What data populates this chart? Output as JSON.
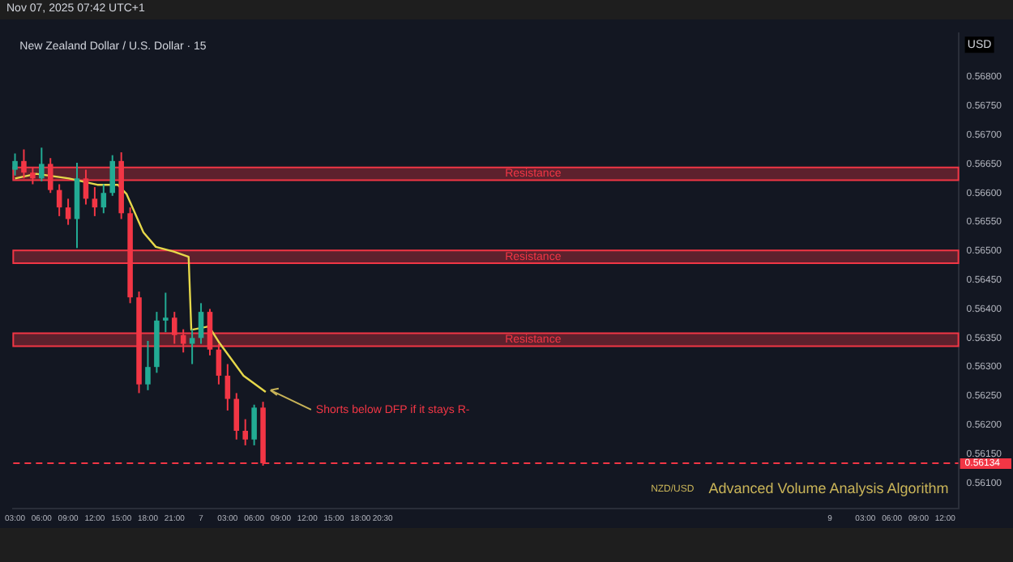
{
  "chart_data": {
    "type": "candlestick",
    "title": "New Zealand Dollar / U.S. Dollar · 15",
    "ylabel": "USD",
    "annotations": [
      "Nov 07, 2025 07:42 UTC+1",
      "NZD/USD",
      "Advanced Volume Analysis Algorithm",
      {
        "text": "Shorts below DFP if it stays R-",
        "x": "2025-11-07T07:18",
        "y": 0.5626
      }
    ],
    "x": [
      "2025-11-06T03:00",
      "2025-11-06T04:00",
      "2025-11-06T05:00",
      "2025-11-06T06:00",
      "2025-11-06T07:00",
      "2025-11-06T08:00",
      "2025-11-06T09:00",
      "2025-11-06T10:00",
      "2025-11-06T11:00",
      "2025-11-06T12:00",
      "2025-11-06T13:00",
      "2025-11-06T14:00",
      "2025-11-06T15:00",
      "2025-11-06T16:00",
      "2025-11-06T17:00",
      "2025-11-06T18:00",
      "2025-11-06T19:00",
      "2025-11-06T20:00",
      "2025-11-06T21:00",
      "2025-11-06T22:00",
      "2025-11-06T23:00",
      "2025-11-07T00:00",
      "2025-11-07T01:00",
      "2025-11-07T02:00",
      "2025-11-07T03:00",
      "2025-11-07T04:00",
      "2025-11-07T05:00",
      "2025-11-07T06:00",
      "2025-11-07T07:00"
    ],
    "ohlc": [
      [
        0.5664,
        0.56668,
        0.5663,
        0.56655
      ],
      [
        0.56655,
        0.56675,
        0.56625,
        0.56635
      ],
      [
        0.56635,
        0.56645,
        0.56615,
        0.56625
      ],
      [
        0.56625,
        0.56678,
        0.5662,
        0.5665
      ],
      [
        0.5665,
        0.5666,
        0.566,
        0.56605
      ],
      [
        0.56605,
        0.56615,
        0.5656,
        0.56575
      ],
      [
        0.56575,
        0.5659,
        0.56545,
        0.56555
      ],
      [
        0.56555,
        0.56652,
        0.56505,
        0.56625
      ],
      [
        0.56625,
        0.5664,
        0.5658,
        0.5659
      ],
      [
        0.5659,
        0.5661,
        0.5656,
        0.56575
      ],
      [
        0.56575,
        0.56615,
        0.56565,
        0.566
      ],
      [
        0.566,
        0.56665,
        0.56595,
        0.56655
      ],
      [
        0.56655,
        0.5667,
        0.56555,
        0.56565
      ],
      [
        0.56565,
        0.56575,
        0.5641,
        0.5642
      ],
      [
        0.5642,
        0.5643,
        0.56255,
        0.5627
      ],
      [
        0.5627,
        0.56345,
        0.5626,
        0.563
      ],
      [
        0.563,
        0.56395,
        0.5629,
        0.5638
      ],
      [
        0.5638,
        0.56428,
        0.5636,
        0.56385
      ],
      [
        0.56385,
        0.56395,
        0.5634,
        0.56355
      ],
      [
        0.56355,
        0.56365,
        0.56325,
        0.5634
      ],
      [
        0.5634,
        0.56365,
        0.56305,
        0.5635
      ],
      [
        0.5635,
        0.5641,
        0.5634,
        0.56395
      ],
      [
        0.56395,
        0.564,
        0.5632,
        0.5633
      ],
      [
        0.5633,
        0.5634,
        0.5627,
        0.56285
      ],
      [
        0.56285,
        0.56305,
        0.56225,
        0.56245
      ],
      [
        0.56245,
        0.56255,
        0.56175,
        0.5619
      ],
      [
        0.5619,
        0.5621,
        0.56165,
        0.56175
      ],
      [
        0.56175,
        0.56235,
        0.56165,
        0.5623
      ],
      [
        0.5623,
        0.5624,
        0.5613,
        0.56134
      ]
    ],
    "colors": [
      "#22ab94",
      "#f23645",
      "#f23645",
      "#22ab94",
      "#f23645",
      "#f23645",
      "#f23645",
      "#22ab94",
      "#f23645",
      "#f23645",
      "#22ab94",
      "#22ab94",
      "#f23645",
      "#f23645",
      "#f23645",
      "#22ab94",
      "#22ab94",
      "#22ab94",
      "#f23645",
      "#f23645",
      "#22ab94",
      "#22ab94",
      "#f23645",
      "#f23645",
      "#f23645",
      "#f23645",
      "#f23645",
      "#22ab94",
      "#f23645"
    ],
    "series": [
      {
        "type": "line",
        "color": "#e6d84a",
        "x": [
          "2025-11-06T03:00",
          "2025-11-06T05:24",
          "2025-11-06T09:06",
          "2025-11-06T12:18",
          "2025-11-06T14:36",
          "2025-11-06T15:36",
          "2025-11-06T17:30",
          "2025-11-06T18:54",
          "2025-11-06T20:54",
          "2025-11-06T22:36",
          "2025-11-06T22:54",
          "2025-11-07T00:54",
          "2025-11-07T02:06",
          "2025-11-07T04:48",
          "2025-11-07T07:18"
        ],
        "values": [
          0.56625,
          0.56633,
          0.56625,
          0.56614,
          0.56614,
          0.56598,
          0.56532,
          0.56507,
          0.56499,
          0.5649,
          0.56364,
          0.5637,
          0.56341,
          0.56285,
          0.56257
        ]
      }
    ],
    "marker": "none",
    "grid": false,
    "bands": [
      {
        "axis": "y",
        "from": 0.56622,
        "to": 0.56644,
        "label": "Resistance",
        "color": "#f23645"
      },
      {
        "axis": "y",
        "from": 0.56479,
        "to": 0.56501,
        "label": "Resistance",
        "color": "#f23645"
      },
      {
        "axis": "y",
        "from": 0.56336,
        "to": 0.56358,
        "label": "Resistance",
        "color": "#f23645"
      }
    ],
    "ref_lines": [
      {
        "axis": "y",
        "value": 0.56134,
        "label": "0.56134",
        "color": "#f23645",
        "line_style": "dashed"
      }
    ],
    "xlim": [
      "2025-11-06T02:48",
      "2025-11-10T13:30"
    ],
    "xticks": [
      {
        "value": "2025-11-06T03:00",
        "label": "03:00"
      },
      {
        "value": "2025-11-06T06:00",
        "label": "06:00"
      },
      {
        "value": "2025-11-06T09:00",
        "label": "09:00"
      },
      {
        "value": "2025-11-06T12:00",
        "label": "12:00"
      },
      {
        "value": "2025-11-06T15:00",
        "label": "15:00"
      },
      {
        "value": "2025-11-06T18:00",
        "label": "18:00"
      },
      {
        "value": "2025-11-06T21:00",
        "label": "21:00"
      },
      {
        "value": "2025-11-07T00:00",
        "label": "7"
      },
      {
        "value": "2025-11-07T03:00",
        "label": "03:00"
      },
      {
        "value": "2025-11-07T06:00",
        "label": "06:00"
      },
      {
        "value": "2025-11-07T09:00",
        "label": "09:00"
      },
      {
        "value": "2025-11-07T12:00",
        "label": "12:00"
      },
      {
        "value": "2025-11-07T15:00",
        "label": "15:00"
      },
      {
        "value": "2025-11-07T18:00",
        "label": "18:00"
      },
      {
        "value": "2025-11-07T20:30",
        "label": "20:30"
      },
      {
        "value": "2025-11-09T23:00",
        "label": "9"
      },
      {
        "value": "2025-11-10T03:00",
        "label": "03:00"
      },
      {
        "value": "2025-11-10T06:00",
        "label": "06:00"
      },
      {
        "value": "2025-11-10T09:00",
        "label": "09:00"
      },
      {
        "value": "2025-11-10T12:00",
        "label": "12:00"
      }
    ],
    "ylim": [
      0.56056,
      0.56875
    ],
    "yticks": [
      {
        "value": 0.561,
        "label": "0.56100"
      },
      {
        "value": 0.5615,
        "label": "0.56150"
      },
      {
        "value": 0.562,
        "label": "0.56200"
      },
      {
        "value": 0.5625,
        "label": "0.56250"
      },
      {
        "value": 0.563,
        "label": "0.56300"
      },
      {
        "value": 0.5635,
        "label": "0.56350"
      },
      {
        "value": 0.564,
        "label": "0.56400"
      },
      {
        "value": 0.5645,
        "label": "0.56450"
      },
      {
        "value": 0.565,
        "label": "0.56500"
      },
      {
        "value": 0.5655,
        "label": "0.56550"
      },
      {
        "value": 0.566,
        "label": "0.56600"
      },
      {
        "value": 0.5665,
        "label": "0.56650"
      },
      {
        "value": 0.567,
        "label": "0.56700"
      },
      {
        "value": 0.5675,
        "label": "0.56750"
      },
      {
        "value": 0.568,
        "label": "0.56800"
      }
    ]
  }
}
